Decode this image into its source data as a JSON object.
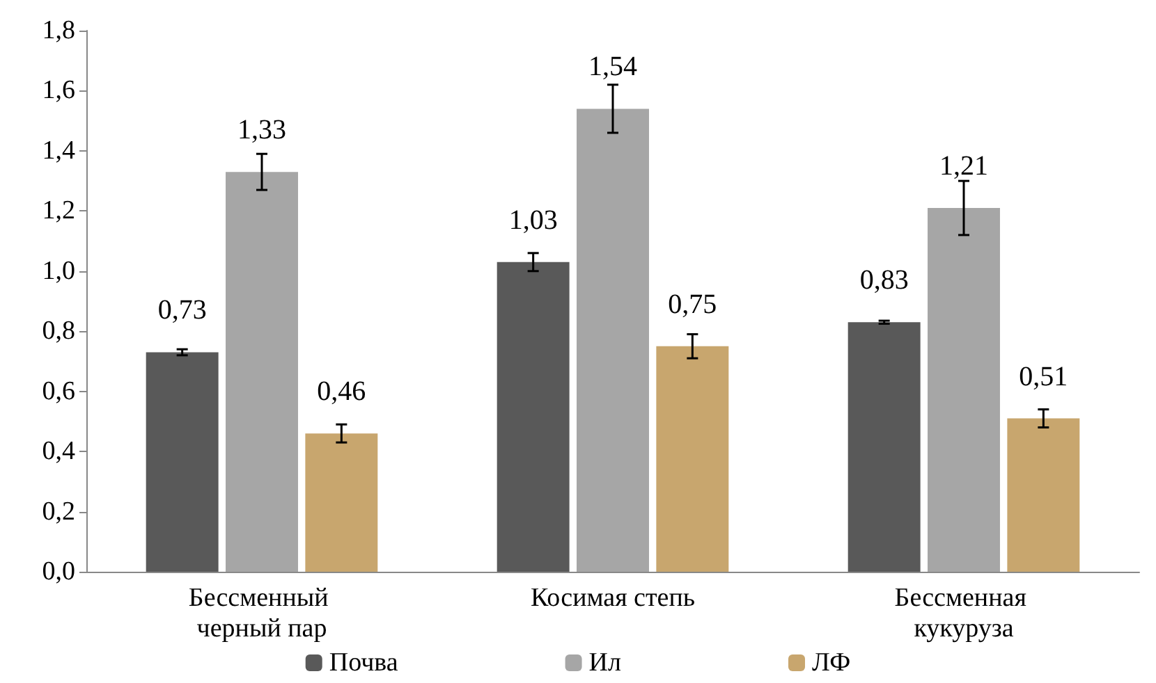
{
  "chart_data": {
    "type": "bar",
    "categories": [
      "Бессменный черный пар",
      "Косимая степь",
      "Бессменная кукуруза"
    ],
    "series": [
      {
        "name": "Почва",
        "color": "#595959",
        "values": [
          0.73,
          1.03,
          0.83
        ],
        "errors": [
          0.01,
          0.03,
          0.005
        ],
        "value_labels": [
          "0,73",
          "1,03",
          "0,83"
        ]
      },
      {
        "name": "Ил",
        "color": "#a6a6a6",
        "values": [
          1.33,
          1.54,
          1.21
        ],
        "errors": [
          0.06,
          0.08,
          0.09
        ],
        "value_labels": [
          "1,33",
          "1,54",
          "1,21"
        ]
      },
      {
        "name": "ЛФ",
        "color": "#c8a66e",
        "values": [
          0.46,
          0.75,
          0.51
        ],
        "errors": [
          0.03,
          0.04,
          0.03
        ],
        "value_labels": [
          "0,46",
          "0,75",
          "0,51"
        ]
      }
    ],
    "ylim": [
      0,
      1.8
    ],
    "yticks": [
      {
        "value": 0,
        "label": "0,0"
      },
      {
        "value": 0.2,
        "label": "0,2"
      },
      {
        "value": 0.4,
        "label": "0,4"
      },
      {
        "value": 0.6,
        "label": "0,6"
      },
      {
        "value": 0.8,
        "label": "0,8"
      },
      {
        "value": 1.0,
        "label": "1,0"
      },
      {
        "value": 1.2,
        "label": "1,2"
      },
      {
        "value": 1.4,
        "label": "1,4"
      },
      {
        "value": 1.6,
        "label": "1,6"
      },
      {
        "value": 1.8,
        "label": "1,8"
      }
    ],
    "grid": false,
    "legend": "bottom"
  }
}
